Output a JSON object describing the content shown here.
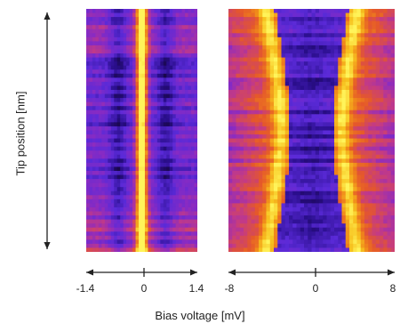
{
  "chart_data": [
    {
      "type": "heatmap",
      "xlabel": "Bias voltage [mV]",
      "ylabel": "Tip position [nm]",
      "xlim": [
        -1.4,
        1.4
      ],
      "x_ticks": [
        "-1.4",
        "0",
        "1.4"
      ],
      "colormap": [
        "#10032a",
        "#2a0e8c",
        "#5a2ad8",
        "#8a2bc2",
        "#c33a86",
        "#e5582a",
        "#f08a1a",
        "#f7c21f",
        "#fff45a"
      ],
      "features": [
        {
          "description": "bright narrow band",
          "x": 0.0
        },
        {
          "description": "dark side minima",
          "x": [
            -0.6,
            0.6
          ]
        }
      ]
    },
    {
      "type": "heatmap",
      "xlabel": "Bias voltage [mV]",
      "ylabel": "Tip position [nm]",
      "xlim": [
        -8,
        8
      ],
      "x_ticks": [
        "-8",
        "0",
        "8"
      ],
      "colormap": [
        "#10032a",
        "#2a0e8c",
        "#5a2ad8",
        "#8a2bc2",
        "#c33a86",
        "#e5582a",
        "#f08a1a",
        "#f7c21f",
        "#fff45a"
      ],
      "gap_edge_min": 2.0,
      "gap_edge_max": 3.5,
      "gap_edge_max_at": "top and bottom",
      "gap_edge_min_at": "middle"
    }
  ],
  "labels": {
    "ylabel": "Tip position [nm]",
    "xlabel": "Bias voltage [mV]",
    "left_ticks": [
      "-1.4",
      "0",
      "1.4"
    ],
    "right_ticks": [
      "-8",
      "0",
      "8"
    ]
  }
}
